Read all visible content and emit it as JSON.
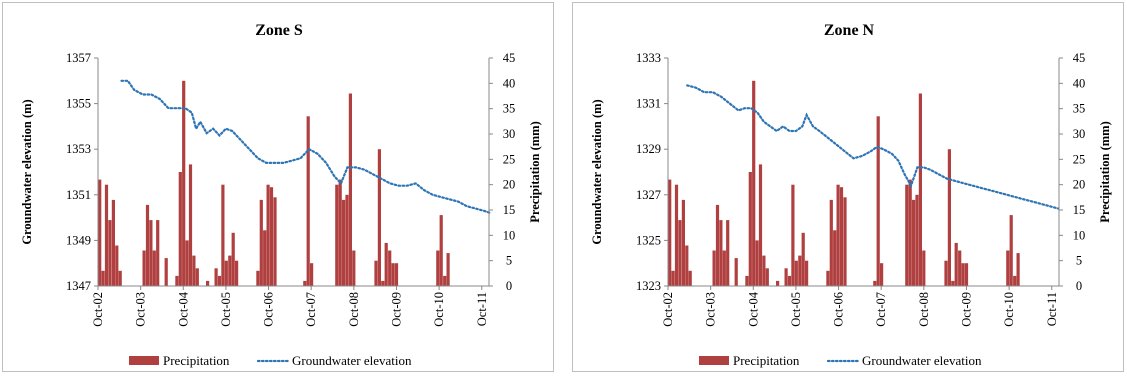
{
  "chart_data": [
    {
      "type": "bar+line",
      "title": "Zone S",
      "ylabel_left": "Groundwater elevation (m)",
      "ylabel_right": "Precipitation (mm)",
      "ylim_left": [
        1347,
        1357
      ],
      "yticks_left": [
        "1347",
        "1349",
        "1351",
        "1353",
        "1355",
        "1357"
      ],
      "ylim_right": [
        0,
        45
      ],
      "yticks_right": [
        "0",
        "5",
        "10",
        "15",
        "20",
        "25",
        "30",
        "35",
        "40",
        "45"
      ],
      "xlim": [
        2002.75,
        2011.92
      ],
      "x_ticks": [
        {
          "label": "Oct-02",
          "t": 2002.75
        },
        {
          "label": "Oct-03",
          "t": 2003.75
        },
        {
          "label": "Oct-04",
          "t": 2004.75
        },
        {
          "label": "Oct-05",
          "t": 2005.75
        },
        {
          "label": "Oct-06",
          "t": 2006.75
        },
        {
          "label": "Oct-07",
          "t": 2007.75
        },
        {
          "label": "Oct-08",
          "t": 2008.75
        },
        {
          "label": "Oct-09",
          "t": 2009.75
        },
        {
          "label": "Oct-10",
          "t": 2010.75
        },
        {
          "label": "Oct-11",
          "t": 2011.75
        }
      ],
      "grid": false,
      "legend_position": "bottom",
      "series": [
        {
          "name": "Precipitation",
          "kind": "bar",
          "color": "#b04040",
          "points": [
            [
              2002.79,
              21
            ],
            [
              2002.87,
              3
            ],
            [
              2002.95,
              20
            ],
            [
              2003.03,
              13
            ],
            [
              2003.11,
              17
            ],
            [
              2003.19,
              8
            ],
            [
              2003.27,
              3
            ],
            [
              2003.83,
              7
            ],
            [
              2003.91,
              16
            ],
            [
              2003.99,
              13
            ],
            [
              2004.07,
              7
            ],
            [
              2004.15,
              13
            ],
            [
              2004.35,
              5.5
            ],
            [
              2004.6,
              2
            ],
            [
              2004.68,
              22.5
            ],
            [
              2004.76,
              40.5
            ],
            [
              2004.84,
              9
            ],
            [
              2004.92,
              24
            ],
            [
              2005.0,
              6
            ],
            [
              2005.08,
              3.5
            ],
            [
              2005.32,
              1
            ],
            [
              2005.52,
              3.5
            ],
            [
              2005.6,
              2
            ],
            [
              2005.68,
              20
            ],
            [
              2005.76,
              5
            ],
            [
              2005.84,
              6
            ],
            [
              2005.92,
              10.5
            ],
            [
              2006.0,
              5
            ],
            [
              2006.5,
              3
            ],
            [
              2006.58,
              17
            ],
            [
              2006.66,
              11
            ],
            [
              2006.74,
              20
            ],
            [
              2006.82,
              19.5
            ],
            [
              2006.9,
              17.5
            ],
            [
              2007.6,
              1
            ],
            [
              2007.68,
              33.5
            ],
            [
              2007.76,
              4.5
            ],
            [
              2008.35,
              20
            ],
            [
              2008.43,
              21
            ],
            [
              2008.51,
              17
            ],
            [
              2008.59,
              18
            ],
            [
              2008.67,
              38
            ],
            [
              2008.75,
              7
            ],
            [
              2009.27,
              5
            ],
            [
              2009.35,
              27
            ],
            [
              2009.43,
              1
            ],
            [
              2009.51,
              8.5
            ],
            [
              2009.59,
              7
            ],
            [
              2009.67,
              4.5
            ],
            [
              2009.75,
              4.5
            ],
            [
              2010.72,
              7
            ],
            [
              2010.8,
              14
            ],
            [
              2010.88,
              2
            ],
            [
              2010.96,
              6.5
            ]
          ]
        },
        {
          "name": "Groundwater elevation",
          "kind": "line",
          "style": "dotted",
          "color": "#2e75b6",
          "points": [
            [
              2003.3,
              1356.0
            ],
            [
              2003.45,
              1356.0
            ],
            [
              2003.6,
              1355.6
            ],
            [
              2003.8,
              1355.4
            ],
            [
              2004.0,
              1355.4
            ],
            [
              2004.2,
              1355.2
            ],
            [
              2004.4,
              1354.8
            ],
            [
              2004.6,
              1354.8
            ],
            [
              2004.8,
              1354.8
            ],
            [
              2004.95,
              1354.6
            ],
            [
              2005.05,
              1353.9
            ],
            [
              2005.15,
              1354.2
            ],
            [
              2005.3,
              1353.7
            ],
            [
              2005.45,
              1353.9
            ],
            [
              2005.6,
              1353.6
            ],
            [
              2005.75,
              1353.9
            ],
            [
              2005.9,
              1353.8
            ],
            [
              2006.1,
              1353.4
            ],
            [
              2006.3,
              1353.0
            ],
            [
              2006.5,
              1352.6
            ],
            [
              2006.7,
              1352.4
            ],
            [
              2006.9,
              1352.4
            ],
            [
              2007.1,
              1352.4
            ],
            [
              2007.3,
              1352.5
            ],
            [
              2007.5,
              1352.6
            ],
            [
              2007.7,
              1353.0
            ],
            [
              2007.9,
              1352.8
            ],
            [
              2008.1,
              1352.4
            ],
            [
              2008.3,
              1351.8
            ],
            [
              2008.45,
              1351.5
            ],
            [
              2008.6,
              1352.2
            ],
            [
              2008.8,
              1352.2
            ],
            [
              2009.0,
              1352.1
            ],
            [
              2009.2,
              1351.9
            ],
            [
              2009.4,
              1351.7
            ],
            [
              2009.6,
              1351.5
            ],
            [
              2009.8,
              1351.4
            ],
            [
              2010.0,
              1351.4
            ],
            [
              2010.2,
              1351.5
            ],
            [
              2010.4,
              1351.2
            ],
            [
              2010.6,
              1351.0
            ],
            [
              2010.8,
              1350.9
            ],
            [
              2011.0,
              1350.8
            ],
            [
              2011.2,
              1350.7
            ],
            [
              2011.4,
              1350.5
            ],
            [
              2011.6,
              1350.4
            ],
            [
              2011.8,
              1350.3
            ],
            [
              2011.95,
              1350.2
            ]
          ]
        }
      ]
    },
    {
      "type": "bar+line",
      "title": "Zone N",
      "ylabel_left": "Groundwater elevation (m)",
      "ylabel_right": "Precipitation (mm)",
      "ylim_left": [
        1323,
        1333
      ],
      "yticks_left": [
        "1323",
        "1325",
        "1327",
        "1329",
        "1331",
        "1333"
      ],
      "ylim_right": [
        0,
        45
      ],
      "yticks_right": [
        "0",
        "5",
        "10",
        "15",
        "20",
        "25",
        "30",
        "35",
        "40",
        "45"
      ],
      "xlim": [
        2002.75,
        2011.92
      ],
      "x_ticks": [
        {
          "label": "Oct-02",
          "t": 2002.75
        },
        {
          "label": "Oct-03",
          "t": 2003.75
        },
        {
          "label": "Oct-04",
          "t": 2004.75
        },
        {
          "label": "Oct-05",
          "t": 2005.75
        },
        {
          "label": "Oct-06",
          "t": 2006.75
        },
        {
          "label": "Oct-07",
          "t": 2007.75
        },
        {
          "label": "Oct-08",
          "t": 2008.75
        },
        {
          "label": "Oct-09",
          "t": 2009.75
        },
        {
          "label": "Oct-10",
          "t": 2010.75
        },
        {
          "label": "Oct-11",
          "t": 2011.75
        }
      ],
      "grid": false,
      "legend_position": "bottom",
      "series": [
        {
          "name": "Precipitation",
          "kind": "bar",
          "color": "#b04040",
          "points": [
            [
              2002.79,
              21
            ],
            [
              2002.87,
              3
            ],
            [
              2002.95,
              20
            ],
            [
              2003.03,
              13
            ],
            [
              2003.11,
              17
            ],
            [
              2003.19,
              8
            ],
            [
              2003.27,
              3
            ],
            [
              2003.83,
              7
            ],
            [
              2003.91,
              16
            ],
            [
              2003.99,
              13
            ],
            [
              2004.07,
              7
            ],
            [
              2004.15,
              13
            ],
            [
              2004.35,
              5.5
            ],
            [
              2004.6,
              2
            ],
            [
              2004.68,
              22.5
            ],
            [
              2004.76,
              40.5
            ],
            [
              2004.84,
              9
            ],
            [
              2004.92,
              24
            ],
            [
              2005.0,
              6
            ],
            [
              2005.08,
              3.5
            ],
            [
              2005.32,
              1
            ],
            [
              2005.52,
              3.5
            ],
            [
              2005.6,
              2
            ],
            [
              2005.68,
              20
            ],
            [
              2005.76,
              5
            ],
            [
              2005.84,
              6
            ],
            [
              2005.92,
              10.5
            ],
            [
              2006.0,
              5
            ],
            [
              2006.5,
              3
            ],
            [
              2006.58,
              17
            ],
            [
              2006.66,
              11
            ],
            [
              2006.74,
              20
            ],
            [
              2006.82,
              19.5
            ],
            [
              2006.9,
              17.5
            ],
            [
              2007.6,
              1
            ],
            [
              2007.68,
              33.5
            ],
            [
              2007.76,
              4.5
            ],
            [
              2008.35,
              20
            ],
            [
              2008.43,
              21
            ],
            [
              2008.51,
              17
            ],
            [
              2008.59,
              18
            ],
            [
              2008.67,
              38
            ],
            [
              2008.75,
              7
            ],
            [
              2009.27,
              5
            ],
            [
              2009.35,
              27
            ],
            [
              2009.43,
              1
            ],
            [
              2009.51,
              8.5
            ],
            [
              2009.59,
              7
            ],
            [
              2009.67,
              4.5
            ],
            [
              2009.75,
              4.5
            ],
            [
              2010.72,
              7
            ],
            [
              2010.8,
              14
            ],
            [
              2010.88,
              2
            ],
            [
              2010.96,
              6.5
            ]
          ]
        },
        {
          "name": "Groundwater elevation",
          "kind": "line",
          "style": "dotted",
          "color": "#2e75b6",
          "points": [
            [
              2003.2,
              1331.8
            ],
            [
              2003.4,
              1331.7
            ],
            [
              2003.6,
              1331.5
            ],
            [
              2003.8,
              1331.5
            ],
            [
              2004.0,
              1331.3
            ],
            [
              2004.2,
              1331.0
            ],
            [
              2004.4,
              1330.7
            ],
            [
              2004.55,
              1330.8
            ],
            [
              2004.7,
              1330.8
            ],
            [
              2004.85,
              1330.6
            ],
            [
              2005.0,
              1330.2
            ],
            [
              2005.15,
              1330.0
            ],
            [
              2005.3,
              1329.8
            ],
            [
              2005.45,
              1330.0
            ],
            [
              2005.6,
              1329.8
            ],
            [
              2005.75,
              1329.8
            ],
            [
              2005.9,
              1330.0
            ],
            [
              2006.0,
              1330.5
            ],
            [
              2006.15,
              1330.0
            ],
            [
              2006.3,
              1329.8
            ],
            [
              2006.5,
              1329.5
            ],
            [
              2006.7,
              1329.2
            ],
            [
              2006.9,
              1328.9
            ],
            [
              2007.1,
              1328.6
            ],
            [
              2007.3,
              1328.7
            ],
            [
              2007.5,
              1328.9
            ],
            [
              2007.65,
              1329.1
            ],
            [
              2007.8,
              1329.0
            ],
            [
              2008.0,
              1328.8
            ],
            [
              2008.15,
              1328.5
            ],
            [
              2008.3,
              1327.9
            ],
            [
              2008.45,
              1327.4
            ],
            [
              2008.6,
              1328.2
            ],
            [
              2008.75,
              1328.2
            ],
            [
              2008.9,
              1328.1
            ],
            [
              2009.1,
              1327.9
            ],
            [
              2009.3,
              1327.7
            ],
            [
              2009.5,
              1327.6
            ],
            [
              2009.7,
              1327.5
            ],
            [
              2009.9,
              1327.4
            ],
            [
              2010.1,
              1327.3
            ],
            [
              2010.3,
              1327.2
            ],
            [
              2010.5,
              1327.1
            ],
            [
              2010.7,
              1327.0
            ],
            [
              2010.9,
              1326.9
            ],
            [
              2011.1,
              1326.8
            ],
            [
              2011.3,
              1326.7
            ],
            [
              2011.5,
              1326.6
            ],
            [
              2011.7,
              1326.5
            ],
            [
              2011.9,
              1326.4
            ]
          ]
        }
      ]
    }
  ]
}
